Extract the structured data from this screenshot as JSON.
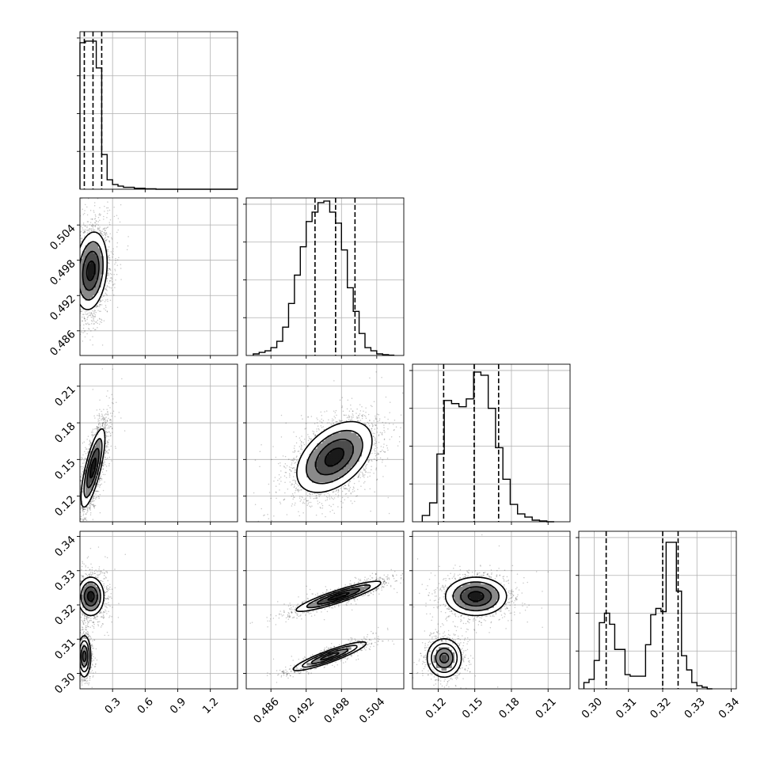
{
  "chart_data": {
    "type": "corner",
    "parameters": [
      {
        "range": [
          0.0,
          1.45
        ],
        "ticks": [
          0.3,
          0.6,
          0.9,
          1.2
        ],
        "tick_labels": [
          "0.3",
          "0.6",
          "0.9",
          "1.2"
        ]
      },
      {
        "range": [
          0.4818,
          0.5086
        ],
        "ticks": [
          0.486,
          0.492,
          0.498,
          0.504
        ],
        "tick_labels": [
          "0.486",
          "0.492",
          "0.498",
          "0.504"
        ]
      },
      {
        "range": [
          0.099,
          0.228
        ],
        "ticks": [
          0.12,
          0.15,
          0.18,
          0.21
        ],
        "tick_labels": [
          "0.12",
          "0.15",
          "0.18",
          "0.21"
        ]
      },
      {
        "range": [
          0.2955,
          0.3415
        ],
        "ticks": [
          0.3,
          0.31,
          0.32,
          0.33,
          0.34
        ],
        "tick_labels": [
          "0.30",
          "0.31",
          "0.32",
          "0.33",
          "0.34"
        ]
      }
    ],
    "histograms": [
      {
        "bins": [
          0.0,
          0.05,
          0.1,
          0.15,
          0.2,
          0.25,
          0.3,
          0.35,
          0.4,
          0.5,
          0.6,
          0.7,
          1.45
        ],
        "counts": [
          0.93,
          0.94,
          0.94,
          0.77,
          0.22,
          0.06,
          0.03,
          0.02,
          0.012,
          0.006,
          0.003,
          0.0
        ],
        "quantiles": [
          0.04,
          0.12,
          0.2
        ]
      },
      {
        "bins": [
          0.483,
          0.484,
          0.485,
          0.486,
          0.487,
          0.488,
          0.489,
          0.49,
          0.491,
          0.492,
          0.493,
          0.494,
          0.495,
          0.496,
          0.497,
          0.498,
          0.499,
          0.5,
          0.501,
          0.502,
          0.503,
          0.504,
          0.505,
          0.506,
          0.507
        ],
        "counts": [
          0.01,
          0.02,
          0.03,
          0.05,
          0.09,
          0.18,
          0.33,
          0.51,
          0.69,
          0.85,
          0.91,
          0.97,
          0.98,
          0.91,
          0.84,
          0.67,
          0.43,
          0.28,
          0.14,
          0.05,
          0.03,
          0.01,
          0.005,
          0.002
        ],
        "quantiles": [
          0.4935,
          0.497,
          0.5003
        ]
      },
      {
        "bins": [
          0.107,
          0.113,
          0.119,
          0.125,
          0.131,
          0.137,
          0.143,
          0.149,
          0.155,
          0.161,
          0.167,
          0.173,
          0.179,
          0.185,
          0.191,
          0.197,
          0.203,
          0.209,
          0.215
        ],
        "counts": [
          0.04,
          0.12,
          0.43,
          0.77,
          0.75,
          0.73,
          0.78,
          0.95,
          0.93,
          0.72,
          0.47,
          0.27,
          0.11,
          0.05,
          0.03,
          0.01,
          0.005,
          0.0
        ],
        "quantiles": [
          0.1245,
          0.1495,
          0.1695
        ]
      },
      {
        "bins": [
          0.297,
          0.2985,
          0.3,
          0.3015,
          0.303,
          0.3045,
          0.306,
          0.3075,
          0.309,
          0.3105,
          0.312,
          0.3135,
          0.315,
          0.3165,
          0.318,
          0.3195,
          0.321,
          0.3225,
          0.324,
          0.3255,
          0.327,
          0.3285,
          0.33,
          0.3315,
          0.333,
          0.3345
        ],
        "counts": [
          0.04,
          0.06,
          0.18,
          0.42,
          0.48,
          0.41,
          0.25,
          0.25,
          0.09,
          0.08,
          0.08,
          0.08,
          0.28,
          0.47,
          0.51,
          0.49,
          0.93,
          0.93,
          0.62,
          0.21,
          0.12,
          0.04,
          0.02,
          0.01,
          0.0
        ],
        "quantiles": [
          0.3035,
          0.32,
          0.3245
        ]
      }
    ],
    "contours_2d": [
      {
        "x": 0,
        "y": 1,
        "modes": [
          {
            "cx": 0.1,
            "cy": 0.4962,
            "sx": 0.075,
            "sy": 0.0033,
            "rho": 0.2,
            "w": 1
          }
        ]
      },
      {
        "x": 0,
        "y": 2,
        "modes": [
          {
            "cx": 0.12,
            "cy": 0.143,
            "sx": 0.055,
            "sy": 0.016,
            "rho": 0.75,
            "w": 1
          }
        ]
      },
      {
        "x": 1,
        "y": 2,
        "modes": [
          {
            "cx": 0.4968,
            "cy": 0.152,
            "sx": 0.0032,
            "sy": 0.0145,
            "rho": 0.45,
            "w": 1
          }
        ]
      },
      {
        "x": 0,
        "y": 3,
        "modes": [
          {
            "cx": 0.1,
            "cy": 0.3225,
            "sx": 0.06,
            "sy": 0.0028,
            "rho": 0.0,
            "w": 0.6
          },
          {
            "cx": 0.04,
            "cy": 0.305,
            "sx": 0.03,
            "sy": 0.003,
            "rho": 0.0,
            "w": 0.4
          }
        ]
      },
      {
        "x": 1,
        "y": 3,
        "modes": [
          {
            "cx": 0.4975,
            "cy": 0.3225,
            "sx": 0.0036,
            "sy": 0.0022,
            "rho": 0.9,
            "w": 0.6
          },
          {
            "cx": 0.496,
            "cy": 0.305,
            "sx": 0.0031,
            "sy": 0.0021,
            "rho": 0.9,
            "w": 0.4
          }
        ]
      },
      {
        "x": 2,
        "y": 3,
        "modes": [
          {
            "cx": 0.151,
            "cy": 0.3225,
            "sx": 0.0125,
            "sy": 0.0028,
            "rho": 0.0,
            "w": 0.6
          },
          {
            "cx": 0.125,
            "cy": 0.3045,
            "sx": 0.007,
            "sy": 0.0028,
            "rho": 0.0,
            "w": 0.4
          }
        ]
      }
    ],
    "contour_levels_sigma": [
      0.5,
      1.0,
      1.5,
      2.0
    ],
    "grid": true,
    "colors": {
      "line": "#000000",
      "grid": "#b0b0b0",
      "points": "#000000"
    }
  }
}
